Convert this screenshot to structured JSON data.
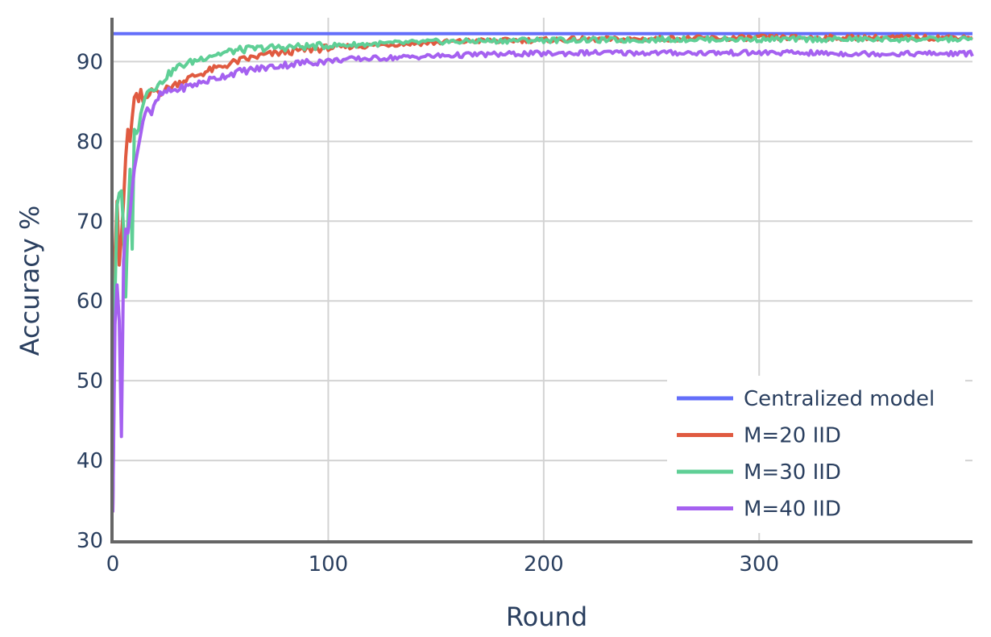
{
  "chart_data": {
    "type": "line",
    "title": "",
    "xlabel": "Round",
    "ylabel": "Accuracy %",
    "xlim": [
      0,
      399
    ],
    "ylim": [
      30,
      95.5
    ],
    "x_ticks": [
      0,
      100,
      200,
      300
    ],
    "y_ticks": [
      30,
      40,
      50,
      60,
      70,
      80,
      90
    ],
    "grid": true,
    "legend_position": "bottom-right",
    "colors": {
      "Centralized model": "#636efa",
      "M=20 IID": "#e05a40",
      "M=30 IID": "#5fcf96",
      "M=40 IID": "#a561f0"
    },
    "series": [
      {
        "name": "Centralized model",
        "color": "#636efa",
        "x": [
          0,
          399
        ],
        "y": [
          93.5,
          93.5
        ]
      },
      {
        "name": "M=20 IID",
        "color": "#e05a40",
        "x": [
          0,
          1,
          2,
          3,
          4,
          5,
          6,
          7,
          8,
          9,
          10,
          11,
          12,
          13,
          14,
          15,
          16,
          18,
          20,
          22,
          25,
          30,
          35,
          40,
          45,
          50,
          55,
          60,
          70,
          80,
          90,
          100,
          110,
          120,
          130,
          140,
          150,
          160,
          170,
          180,
          190,
          200,
          220,
          240,
          260,
          280,
          300,
          320,
          340,
          360,
          380,
          399
        ],
        "y": [
          33.5,
          66,
          72.5,
          64.5,
          68,
          72.5,
          78,
          81.5,
          80,
          83,
          85.5,
          86,
          85,
          86.5,
          85,
          85.5,
          85.5,
          86.2,
          86.4,
          86.1,
          86.6,
          87.3,
          87.9,
          88.4,
          88.9,
          89.3,
          89.8,
          90.2,
          90.8,
          91.2,
          91.5,
          91.7,
          91.9,
          92.0,
          92.2,
          92.3,
          92.4,
          92.5,
          92.6,
          92.6,
          92.7,
          92.7,
          92.8,
          92.8,
          92.9,
          92.9,
          93.0,
          93.0,
          93.0,
          93.0,
          93.0,
          93.1
        ]
      },
      {
        "name": "M=30 IID",
        "color": "#5fcf96",
        "x": [
          0,
          1,
          2,
          3,
          4,
          5,
          6,
          7,
          8,
          9,
          10,
          11,
          12,
          13,
          14,
          15,
          16,
          18,
          20,
          22,
          25,
          30,
          35,
          40,
          45,
          50,
          55,
          60,
          70,
          80,
          90,
          100,
          110,
          120,
          130,
          140,
          150,
          160,
          170,
          180,
          190,
          200,
          220,
          240,
          260,
          280,
          300,
          320,
          340,
          360,
          380,
          399
        ],
        "y": [
          34,
          60.5,
          72,
          73.5,
          73.8,
          69,
          60.5,
          70,
          76.5,
          66.5,
          81.5,
          81,
          81.5,
          83.5,
          84.5,
          85.5,
          86.2,
          86.8,
          86.8,
          87.2,
          88.2,
          89.3,
          89.8,
          90.3,
          90.8,
          91.0,
          91.3,
          91.5,
          91.7,
          91.8,
          91.9,
          92.0,
          92.1,
          92.2,
          92.3,
          92.4,
          92.5,
          92.5,
          92.6,
          92.6,
          92.7,
          92.7,
          92.7,
          92.7,
          92.8,
          92.8,
          92.8,
          92.8,
          92.8,
          92.8,
          92.8,
          92.8
        ]
      },
      {
        "name": "M=40 IID",
        "color": "#a561f0",
        "x": [
          0,
          1,
          2,
          3,
          4,
          5,
          6,
          7,
          8,
          9,
          10,
          11,
          12,
          13,
          14,
          15,
          16,
          18,
          20,
          22,
          25,
          30,
          35,
          40,
          45,
          50,
          55,
          60,
          70,
          80,
          90,
          100,
          110,
          120,
          130,
          140,
          150,
          160,
          170,
          180,
          190,
          200,
          220,
          240,
          260,
          280,
          300,
          320,
          340,
          360,
          380,
          399
        ],
        "y": [
          33.5,
          57,
          62,
          57.5,
          43,
          65,
          69,
          68.5,
          71,
          74,
          76.5,
          78,
          79.5,
          81,
          82.5,
          83.5,
          84.2,
          83.5,
          84.8,
          85.8,
          86.2,
          86.5,
          86.9,
          87.3,
          87.7,
          88.1,
          88.5,
          88.8,
          89.2,
          89.6,
          89.9,
          90.1,
          90.3,
          90.4,
          90.5,
          90.6,
          90.7,
          90.8,
          90.9,
          90.9,
          91.0,
          91.0,
          91.1,
          91.1,
          91.1,
          91.1,
          91.1,
          91.1,
          91.0,
          91.0,
          91.0,
          91.0
        ]
      }
    ]
  }
}
